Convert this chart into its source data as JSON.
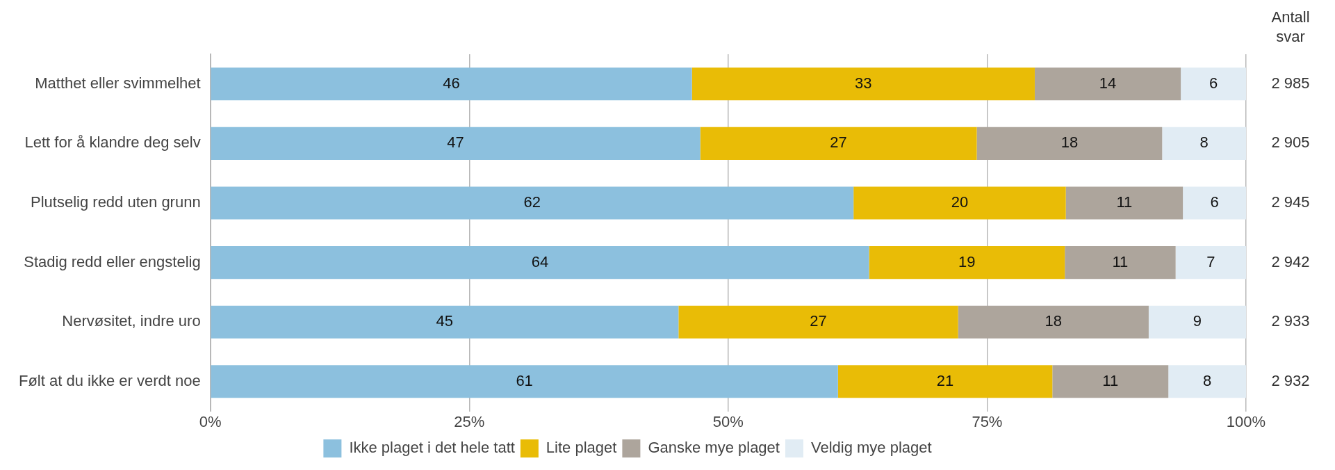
{
  "chart_data": {
    "type": "bar",
    "orientation": "horizontal",
    "stacked": true,
    "categories": [
      "Matthet eller svimmelhet",
      "Lett for å klandre deg selv",
      "Plutselig redd uten grunn",
      "Stadig redd eller engstelig",
      "Nervøsitet, indre uro",
      "Følt at du ikke er verdt noe"
    ],
    "series": [
      {
        "name": "Ikke plaget i det hele tatt",
        "color": "#8cc0de",
        "values": [
          46.5,
          47.3,
          62.1,
          63.6,
          45.2,
          60.6
        ],
        "value_labels": [
          "46",
          "47",
          "62",
          "64",
          "45",
          "61"
        ]
      },
      {
        "name": "Lite plaget",
        "color": "#e9bc06",
        "values": [
          33.1,
          26.7,
          20.5,
          18.9,
          27.0,
          20.7
        ],
        "value_labels": [
          "33",
          "27",
          "20",
          "19",
          "27",
          "21"
        ]
      },
      {
        "name": "Ganske mye plaget",
        "color": "#ada59c",
        "values": [
          14.1,
          17.9,
          11.3,
          10.7,
          18.4,
          11.2
        ],
        "value_labels": [
          "14",
          "18",
          "11",
          "11",
          "18",
          "11"
        ]
      },
      {
        "name": "Veldig mye plaget",
        "color": "#e1ecf4",
        "values": [
          6.3,
          8.1,
          6.1,
          6.8,
          9.4,
          7.5
        ],
        "value_labels": [
          "6",
          "8",
          "6",
          "7",
          "9",
          "8"
        ]
      }
    ],
    "xlim": [
      0,
      100
    ],
    "xticks": [
      {
        "value": 0,
        "label": "0%"
      },
      {
        "value": 25,
        "label": "25%"
      },
      {
        "value": 50,
        "label": "50%"
      },
      {
        "value": 75,
        "label": "75%"
      },
      {
        "value": 100,
        "label": "100%"
      }
    ],
    "grid": "x",
    "legend": "bottom",
    "annotations": [
      "Antall svar",
      "2 985",
      "2 905",
      "2 945",
      "2 942",
      "2 933",
      "2 932"
    ]
  }
}
